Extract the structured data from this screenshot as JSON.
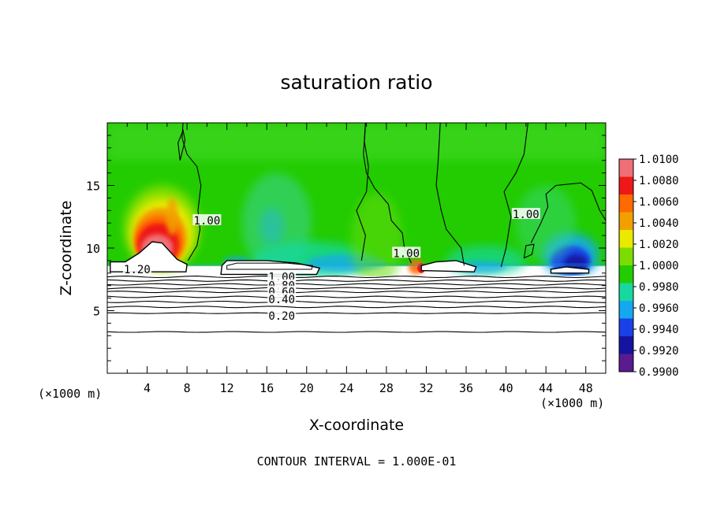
{
  "chart_data": {
    "type": "heatmap",
    "title": "saturation ratio",
    "xlabel": "X-coordinate",
    "ylabel": "Z-coordinate",
    "x_unit_left": "(×1000 m)",
    "x_unit_right": "(×1000 m)",
    "footer": "CONTOUR INTERVAL = 1.000E-01",
    "xlim": [
      0,
      50
    ],
    "ylim": [
      0,
      20
    ],
    "x_ticks": [
      4,
      8,
      12,
      16,
      20,
      24,
      28,
      32,
      36,
      40,
      44,
      48
    ],
    "y_ticks": [
      5,
      10,
      15
    ],
    "colorbar": {
      "ticks": [
        "1.0100",
        "1.0080",
        "1.0060",
        "1.0040",
        "1.0020",
        "1.0000",
        "0.9980",
        "0.9960",
        "0.9940",
        "0.9920",
        "0.9900"
      ],
      "colors": [
        "#ef6f77",
        "#ef1818",
        "#ff6a00",
        "#f2a000",
        "#e8ea00",
        "#7ddd00",
        "#22cc00",
        "#18d8a0",
        "#14a8ee",
        "#1a40e8",
        "#1414a0",
        "#5a1a90"
      ]
    },
    "contour_labels": [
      {
        "text": "1.20",
        "x": 3.0,
        "y": 8.3
      },
      {
        "text": "1.00",
        "x": 10.0,
        "y": 12.2
      },
      {
        "text": "1.00",
        "x": 30.0,
        "y": 9.6
      },
      {
        "text": "1.00",
        "x": 42.0,
        "y": 12.7
      },
      {
        "text": "1.00",
        "x": 17.5,
        "y": 7.7
      },
      {
        "text": "0.80",
        "x": 17.5,
        "y": 7.0
      },
      {
        "text": "0.60",
        "x": 17.5,
        "y": 6.5
      },
      {
        "text": "0.40",
        "x": 17.5,
        "y": 5.9
      },
      {
        "text": "0.20",
        "x": 17.5,
        "y": 4.6
      }
    ],
    "stratified_contour_levels_z": [
      7.7,
      7.4,
      7.1,
      6.8,
      6.5,
      6.1,
      5.7,
      5.3,
      4.8,
      3.3
    ],
    "notes": "Field is ~1.000 (green) above z=8; supersaturated plume (up to >1.010) at x=2-8, z=9-14; subsaturated (0.992-0.996) bands near z=8-9 at x=12-40 and x=44-50."
  }
}
